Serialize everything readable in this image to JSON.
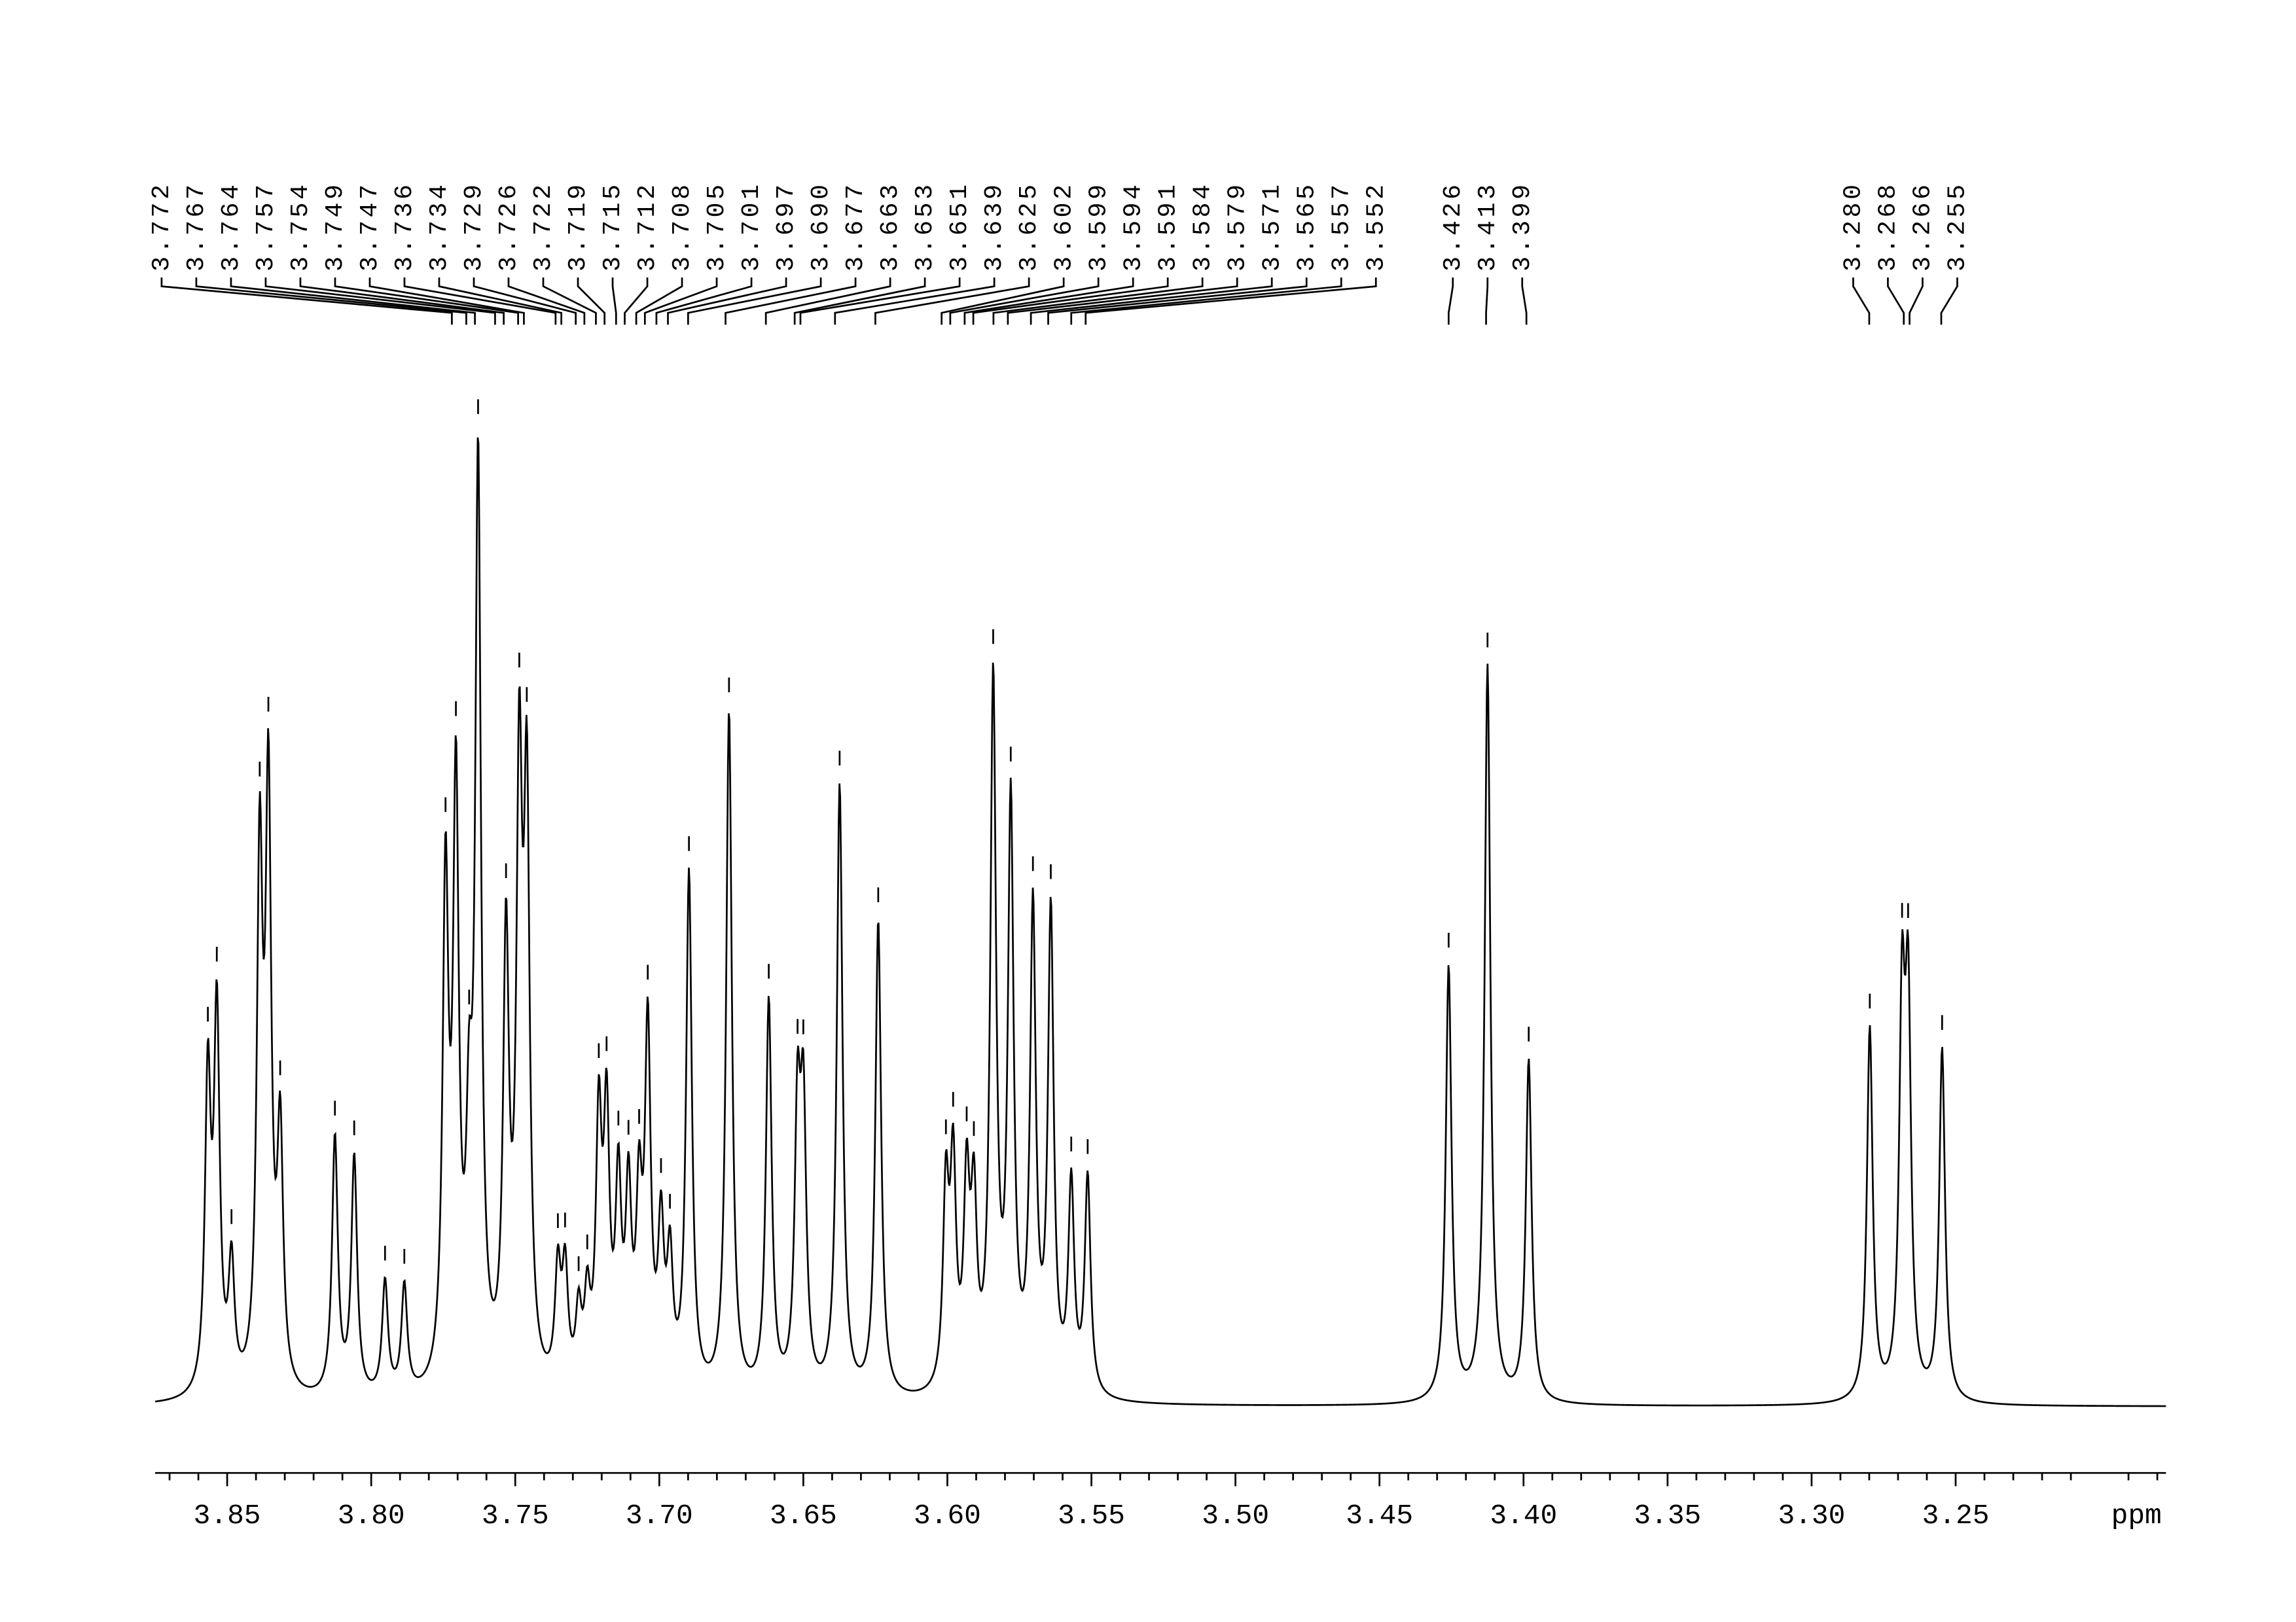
{
  "chart_data": {
    "type": "nmr",
    "x_label": "ppm",
    "color": "#000000",
    "xlim": [
      3.875,
      3.177
    ],
    "xticks": [
      3.85,
      {
        "value": 3.8,
        "label": "3.80"
      },
      3.75,
      {
        "value": 3.7,
        "label": "3.70"
      },
      3.65,
      {
        "value": 3.6,
        "label": "3.60"
      },
      3.55,
      {
        "value": 3.5,
        "label": "3.50"
      },
      3.45,
      {
        "value": 3.4,
        "label": "3.40"
      },
      3.35,
      {
        "value": 3.3,
        "label": "3.30"
      },
      3.25
    ],
    "ylim": [
      0,
      100
    ],
    "peak_labels": [
      3.772,
      3.767,
      3.764,
      3.757,
      3.754,
      3.749,
      3.747,
      3.736,
      3.734,
      3.729,
      3.726,
      3.722,
      3.719,
      3.715,
      3.712,
      3.708,
      3.705,
      3.701,
      3.697,
      {
        "value": 3.69,
        "label": "3.690"
      },
      3.677,
      3.663,
      3.653,
      3.651,
      3.639,
      3.625,
      3.602,
      3.599,
      3.594,
      3.591,
      3.584,
      3.579,
      3.571,
      3.565,
      3.557,
      3.552,
      3.426,
      3.413,
      3.399,
      {
        "value": 3.28,
        "label": "3.280"
      },
      3.268,
      3.266,
      3.255
    ],
    "peaks": {
      "x": [
        3.8567,
        3.8536,
        3.8485,
        3.8387,
        3.8357,
        3.8316,
        3.8126,
        3.8059,
        3.7952,
        3.7885,
        3.7742,
        3.7706,
        3.766,
        3.7629,
        3.7532,
        3.7486,
        3.746,
        3.7352,
        3.7327,
        3.728,
        3.725,
        3.721,
        3.7183,
        3.7142,
        3.7107,
        3.707,
        3.704,
        3.6994,
        3.6963,
        3.6897,
        3.6758,
        3.662,
        3.652,
        3.65,
        3.6374,
        3.624,
        3.6005,
        3.598,
        3.5933,
        3.5908,
        3.5841,
        3.578,
        3.5703,
        3.5641,
        3.557,
        3.5513,
        3.426,
        3.4125,
        3.3982,
        3.2798,
        3.2686,
        3.2665,
        3.2547
      ],
      "y": [
        30,
        36,
        12,
        50,
        56,
        24,
        25,
        23,
        11,
        10.5,
        48,
        56,
        20,
        88,
        42,
        56,
        54,
        11,
        11,
        7,
        8,
        25,
        25,
        19,
        18,
        17,
        34,
        15,
        12,
        50,
        66,
        38,
        26,
        26,
        59,
        46,
        19,
        21,
        19,
        17,
        68,
        56,
        46,
        46,
        20,
        21,
        42,
        71,
        33,
        36,
        36,
        36,
        34
      ]
    }
  }
}
